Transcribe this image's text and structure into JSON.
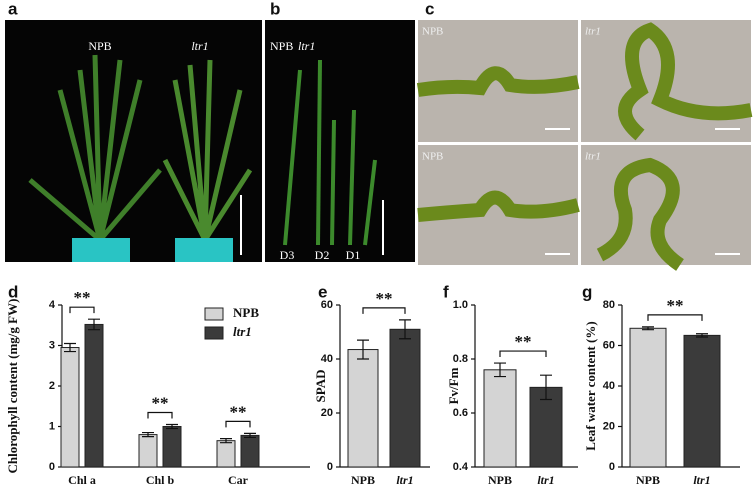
{
  "panel_labels": [
    "a",
    "b",
    "c"
  ],
  "panel_a": {
    "labels": [
      "NPB",
      "ltr1"
    ]
  },
  "panel_b": {
    "labels": [
      "NPB",
      "ltr1"
    ],
    "leaves": [
      "D3",
      "D2",
      "D1"
    ]
  },
  "panel_c": {
    "labels": [
      "NPB",
      "ltr1",
      "NPB",
      "ltr1"
    ]
  },
  "chart_data": [
    {
      "type": "grouped_bar",
      "panel": "d",
      "ylabel": "Chlorophyll content (mg/g FW)",
      "categories": [
        "Chl a",
        "Chl b",
        "Car"
      ],
      "series": [
        {
          "name": "NPB",
          "color": "#d4d4d4",
          "values": [
            2.95,
            0.8,
            0.65
          ],
          "errors": [
            0.1,
            0.05,
            0.05
          ]
        },
        {
          "name": "ltr1",
          "color": "#3b3b3b",
          "values": [
            3.52,
            1.0,
            0.78
          ],
          "errors": [
            0.13,
            0.05,
            0.05
          ]
        }
      ],
      "significance": [
        "**",
        "**",
        "**"
      ],
      "legend": "upper right",
      "ylim": [
        0,
        4
      ],
      "yticks": [
        0,
        1,
        2,
        3,
        4
      ]
    },
    {
      "type": "bar",
      "panel": "e",
      "ylabel": "SPAD",
      "categories": [
        "NPB",
        "ltr1"
      ],
      "values": [
        43.5,
        51
      ],
      "errors": [
        3.5,
        3.5
      ],
      "colors": [
        "#d4d4d4",
        "#3b3b3b"
      ],
      "significance": "**",
      "ylim": [
        0,
        60
      ],
      "yticks": [
        0,
        20,
        40,
        60
      ]
    },
    {
      "type": "bar",
      "panel": "f",
      "ylabel": "Fv/Fm",
      "categories": [
        "NPB",
        "ltr1"
      ],
      "values": [
        0.76,
        0.695
      ],
      "errors": [
        0.025,
        0.045
      ],
      "colors": [
        "#d4d4d4",
        "#3b3b3b"
      ],
      "significance": "**",
      "ylim": [
        0.4,
        1.0
      ],
      "yticks": [
        0.4,
        0.6,
        0.8,
        {
          "value": 1.0,
          "label": "1.0"
        }
      ]
    },
    {
      "type": "bar",
      "panel": "g",
      "ylabel": "Leaf water content (%)",
      "categories": [
        "NPB",
        "ltr1"
      ],
      "values": [
        68.5,
        65
      ],
      "errors": [
        0.7,
        0.8
      ],
      "colors": [
        "#d4d4d4",
        "#3b3b3b"
      ],
      "significance": "**",
      "ylim": [
        0,
        80
      ],
      "yticks": [
        0,
        20,
        40,
        60,
        80
      ]
    }
  ]
}
